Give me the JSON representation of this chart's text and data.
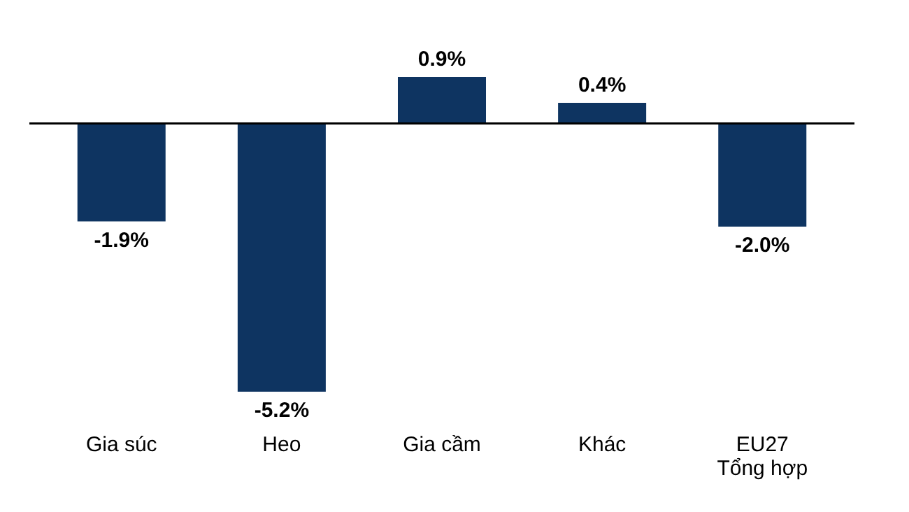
{
  "chart_data": {
    "type": "bar",
    "categories": [
      "Gia súc",
      "Heo",
      "Gia cầm",
      "Khác",
      "EU27\nTổng hợp"
    ],
    "values": [
      -1.9,
      -5.2,
      0.9,
      0.4,
      -2.0
    ],
    "value_labels": [
      "-1.9%",
      "-5.2%",
      "0.9%",
      "0.4%",
      "-2.0%"
    ],
    "color": "#0e3461",
    "ref_lines": [
      {
        "axis": "y",
        "value": 0,
        "color": "#000000"
      }
    ]
  }
}
